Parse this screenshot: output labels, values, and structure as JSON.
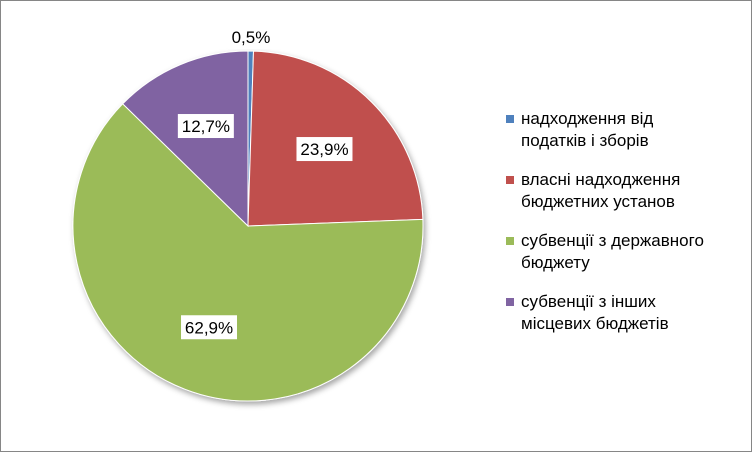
{
  "chart_data": {
    "type": "pie",
    "categories": [
      "надходження від податків і зборів",
      "власні надходження бюджетних установ",
      "субвенції з державного бюджету",
      "субвенції з інших місцевих бюджетів"
    ],
    "values": [
      0.5,
      23.9,
      62.9,
      12.7
    ],
    "data_labels": [
      "0,5%",
      "23,9%",
      "62,9%",
      "12,7%"
    ],
    "colors": [
      "#4F81BD",
      "#C0504D",
      "#9BBB59",
      "#8064A2"
    ],
    "legend_placement": "right",
    "legend_lines": [
      [
        "надходження від",
        "податків і зборів"
      ],
      [
        "власні надходження",
        "бюджетних установ"
      ],
      [
        "субвенції з державного",
        "бюджету"
      ],
      [
        "субвенції з інших",
        "місцевих бюджетів"
      ]
    ]
  }
}
